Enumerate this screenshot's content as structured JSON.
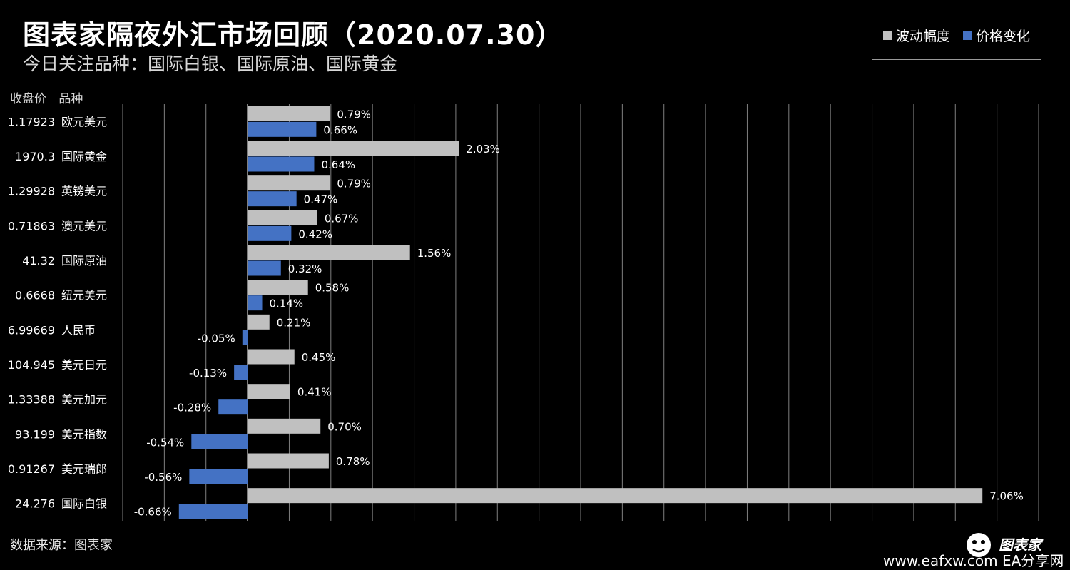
{
  "header": {
    "title": "图表家隔夜外汇市场回顾（2020.07.30）",
    "subtitle": "今日关注品种：国际白银、国际原油、国际黄金"
  },
  "legend": {
    "items": [
      {
        "label": "波动幅度",
        "color": "#c0c0c0"
      },
      {
        "label": "价格变化",
        "color": "#4472c4"
      }
    ]
  },
  "columns": {
    "price_header": "收盘价",
    "name_header": "品种"
  },
  "footer": {
    "source": "数据来源：图表家",
    "brand": "图表家",
    "watermark": "www.eafxw.com  EA分享网"
  },
  "chart_data": {
    "type": "bar",
    "orientation": "horizontal",
    "categories": [
      "欧元美元",
      "国际黄金",
      "英镑美元",
      "澳元美元",
      "国际原油",
      "纽元美元",
      "人民币",
      "美元日元",
      "美元加元",
      "美元指数",
      "美元瑞郎",
      "国际白银"
    ],
    "close_prices": [
      "1.17923",
      "1970.3",
      "1.29928",
      "0.71863",
      "41.32",
      "0.6668",
      "6.99669",
      "104.945",
      "1.33388",
      "93.199",
      "0.91267",
      "24.276"
    ],
    "series": [
      {
        "name": "波动幅度",
        "values": [
          0.79,
          2.03,
          0.79,
          0.67,
          1.56,
          0.58,
          0.21,
          0.45,
          0.41,
          0.7,
          0.78,
          7.06
        ],
        "labels": [
          "0.79%",
          "2.03%",
          "0.79%",
          "0.67%",
          "1.56%",
          "0.58%",
          "0.21%",
          "0.45%",
          "0.41%",
          "0.70%",
          "0.78%",
          "7.06%"
        ]
      },
      {
        "name": "价格变化",
        "values": [
          0.66,
          0.64,
          0.47,
          0.42,
          0.32,
          0.14,
          -0.05,
          -0.13,
          -0.28,
          -0.54,
          -0.56,
          -0.66
        ],
        "labels": [
          "0.66%",
          "0.64%",
          "0.47%",
          "0.42%",
          "0.32%",
          "0.14%",
          "-0.05%",
          "-0.13%",
          "-0.28%",
          "-0.54%",
          "-0.56%",
          "-0.66%"
        ]
      }
    ],
    "xlim": [
      -1.2,
      7.6
    ],
    "grid": true,
    "legend_position": "top-right",
    "colors": {
      "volatility": "#c0c0c0",
      "change": "#4472c4",
      "grid": "#7f7f7f",
      "axis": "#bfbfbf"
    }
  }
}
